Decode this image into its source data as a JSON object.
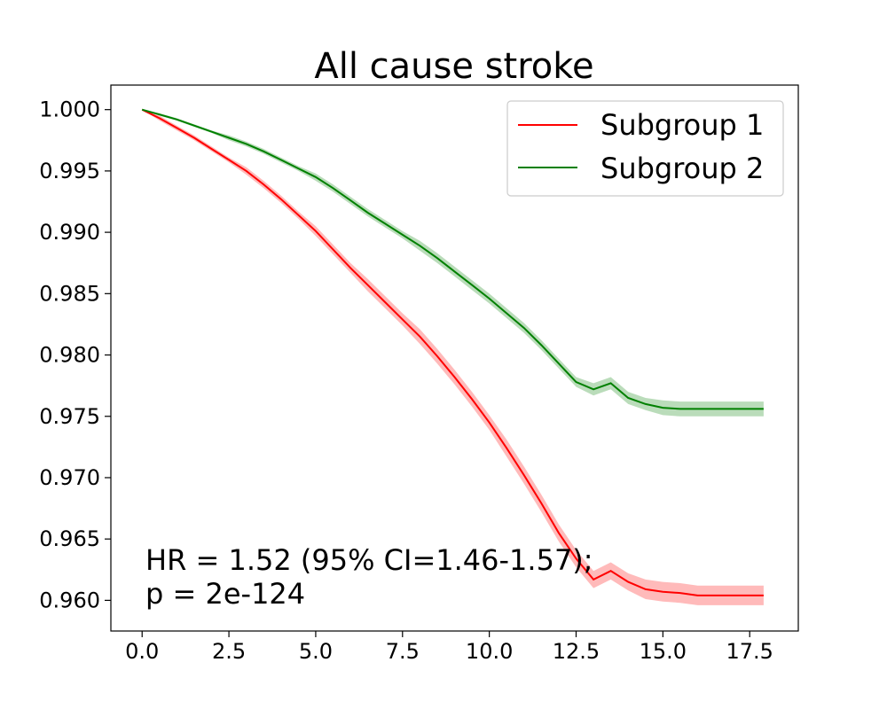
{
  "chart_data": {
    "type": "line",
    "title": "All cause stroke",
    "xlabel": "",
    "ylabel": "",
    "xlim": [
      -0.9,
      18.9
    ],
    "ylim": [
      0.9575,
      1.002
    ],
    "x_ticks": [
      0.0,
      2.5,
      5.0,
      7.5,
      10.0,
      12.5,
      15.0,
      17.5
    ],
    "x_tick_labels": [
      "0.0",
      "2.5",
      "5.0",
      "7.5",
      "10.0",
      "12.5",
      "15.0",
      "17.5"
    ],
    "y_ticks": [
      0.96,
      0.965,
      0.97,
      0.975,
      0.98,
      0.985,
      0.99,
      0.995,
      1.0
    ],
    "y_tick_labels": [
      "0.960",
      "0.965",
      "0.970",
      "0.975",
      "0.980",
      "0.985",
      "0.990",
      "0.995",
      "1.000"
    ],
    "grid": false,
    "legend_position": "top-right",
    "series": [
      {
        "name": "Subgroup 1",
        "color": "#ff0000",
        "band_color": "#ff6666",
        "x": [
          0,
          0.5,
          1,
          1.5,
          2,
          2.5,
          3,
          3.5,
          4,
          4.5,
          5,
          5.5,
          6,
          6.5,
          7,
          7.5,
          8,
          8.5,
          9,
          9.5,
          10,
          10.5,
          11,
          11.5,
          12,
          12.5,
          13,
          13.5,
          14,
          14.5,
          15,
          15.5,
          16,
          16.5,
          17,
          17.5,
          17.9
        ],
        "y": [
          1.0,
          0.9993,
          0.9985,
          0.9977,
          0.9968,
          0.9959,
          0.995,
          0.9939,
          0.9927,
          0.9914,
          0.9901,
          0.9886,
          0.9871,
          0.9857,
          0.9843,
          0.9829,
          0.9815,
          0.9799,
          0.9782,
          0.9764,
          0.9745,
          0.9724,
          0.9702,
          0.9679,
          0.9655,
          0.9634,
          0.9617,
          0.9624,
          0.9615,
          0.9609,
          0.9607,
          0.9606,
          0.9604,
          0.9604,
          0.9604,
          0.9604,
          0.9604
        ],
        "ci_lower": [
          1.0,
          0.9991,
          0.9983,
          0.9975,
          0.9966,
          0.9957,
          0.9947,
          0.9936,
          0.9924,
          0.9911,
          0.9897,
          0.9882,
          0.9867,
          0.9852,
          0.9838,
          0.9824,
          0.9809,
          0.9793,
          0.9776,
          0.9758,
          0.9739,
          0.9717,
          0.9695,
          0.9672,
          0.9648,
          0.9627,
          0.961,
          0.9617,
          0.9608,
          0.9601,
          0.9599,
          0.9598,
          0.9596,
          0.9596,
          0.9596,
          0.9596,
          0.9596
        ],
        "ci_upper": [
          1.0,
          0.9995,
          0.9987,
          0.9979,
          0.997,
          0.9961,
          0.9953,
          0.9942,
          0.993,
          0.9917,
          0.9905,
          0.989,
          0.9875,
          0.9862,
          0.9848,
          0.9834,
          0.9821,
          0.9805,
          0.9788,
          0.977,
          0.9751,
          0.9731,
          0.9709,
          0.9686,
          0.9662,
          0.9641,
          0.9624,
          0.9631,
          0.9622,
          0.9617,
          0.9615,
          0.9614,
          0.9612,
          0.9612,
          0.9612,
          0.9612,
          0.9612
        ]
      },
      {
        "name": "Subgroup 2",
        "color": "#008000",
        "band_color": "#66b266",
        "x": [
          0,
          0.5,
          1,
          1.5,
          2,
          2.5,
          3,
          3.5,
          4,
          4.5,
          5,
          5.5,
          6,
          6.5,
          7,
          7.5,
          8,
          8.5,
          9,
          9.5,
          10,
          10.5,
          11,
          11.5,
          12,
          12.5,
          13,
          13.5,
          14,
          14.5,
          15,
          15.5,
          16,
          16.5,
          17,
          17.5,
          17.9
        ],
        "y": [
          1.0,
          0.9996,
          0.9992,
          0.9987,
          0.9982,
          0.9977,
          0.9972,
          0.9966,
          0.9959,
          0.9952,
          0.9945,
          0.9936,
          0.9926,
          0.9916,
          0.9907,
          0.9898,
          0.9889,
          0.9879,
          0.9868,
          0.9857,
          0.9846,
          0.9834,
          0.9822,
          0.9808,
          0.9793,
          0.9778,
          0.9772,
          0.9777,
          0.9765,
          0.976,
          0.9757,
          0.9756,
          0.9756,
          0.9756,
          0.9756,
          0.9756,
          0.9756
        ],
        "ci_lower": [
          1.0,
          0.9995,
          0.9991,
          0.9986,
          0.9981,
          0.9975,
          0.997,
          0.9964,
          0.9957,
          0.995,
          0.9942,
          0.9933,
          0.9923,
          0.9913,
          0.9904,
          0.9895,
          0.9885,
          0.9875,
          0.9864,
          0.9853,
          0.9842,
          0.983,
          0.9818,
          0.9804,
          0.9789,
          0.9774,
          0.9767,
          0.9772,
          0.976,
          0.9755,
          0.9751,
          0.975,
          0.975,
          0.975,
          0.975,
          0.975,
          0.975
        ],
        "ci_upper": [
          1.0,
          0.9997,
          0.9993,
          0.9988,
          0.9983,
          0.9979,
          0.9974,
          0.9968,
          0.9961,
          0.9954,
          0.9948,
          0.9939,
          0.9929,
          0.9919,
          0.991,
          0.9901,
          0.9893,
          0.9883,
          0.9872,
          0.9861,
          0.985,
          0.9838,
          0.9826,
          0.9812,
          0.9797,
          0.9782,
          0.9777,
          0.9782,
          0.977,
          0.9765,
          0.9763,
          0.9762,
          0.9762,
          0.9762,
          0.9762,
          0.9762,
          0.9762
        ]
      }
    ],
    "annotation": {
      "line1": "HR = 1.52 (95% CI=1.46-1.57);",
      "line2": "p = 2e-124"
    }
  }
}
